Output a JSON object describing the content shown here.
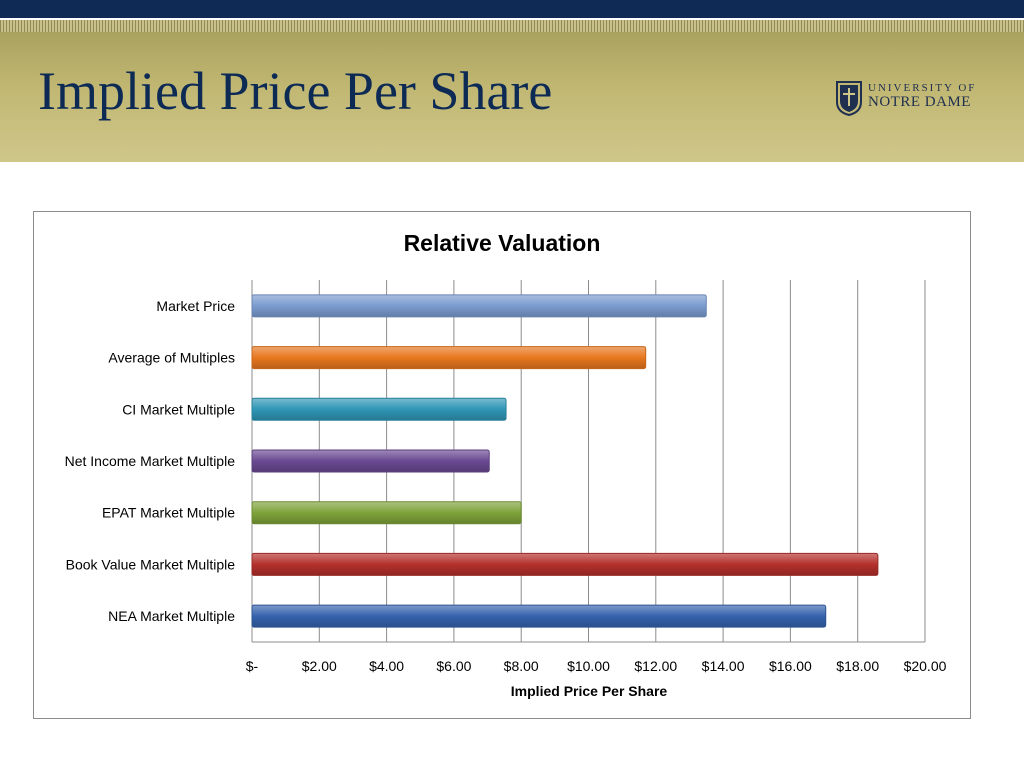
{
  "slide": {
    "title": "Implied Price Per Share",
    "logo": {
      "line1": "UNIVERSITY OF",
      "line2": "NOTRE DAME"
    }
  },
  "colors": {
    "navy": "#0f2a55",
    "gold": "#c2b874"
  },
  "chart_data": {
    "type": "bar",
    "orientation": "horizontal",
    "title": "Relative Valuation",
    "xlabel": "Implied Price Per Share",
    "ylabel": "",
    "xlim": [
      0,
      20
    ],
    "x_ticks": [
      0,
      2,
      4,
      6,
      8,
      10,
      12,
      14,
      16,
      18,
      20
    ],
    "x_tick_labels": [
      "$-",
      "$2.00",
      "$4.00",
      "$6.00",
      "$8.00",
      "$10.00",
      "$12.00",
      "$14.00",
      "$16.00",
      "$18.00",
      "$20.00"
    ],
    "grid": "vertical major gridlines",
    "legend": "none",
    "categories": [
      "Market Price",
      "Average of Multiples",
      "CI Market Multiple",
      "Net Income Market Multiple",
      "EPAT Market Multiple",
      "Book Value Market Multiple",
      "NEA Market Multiple"
    ],
    "values": [
      13.5,
      11.7,
      7.55,
      7.05,
      8.0,
      18.6,
      17.05
    ],
    "bar_colors": [
      "#7b9bd0",
      "#e8771f",
      "#2f96b5",
      "#6a4a92",
      "#7ea33a",
      "#b3302c",
      "#3563ad"
    ]
  }
}
